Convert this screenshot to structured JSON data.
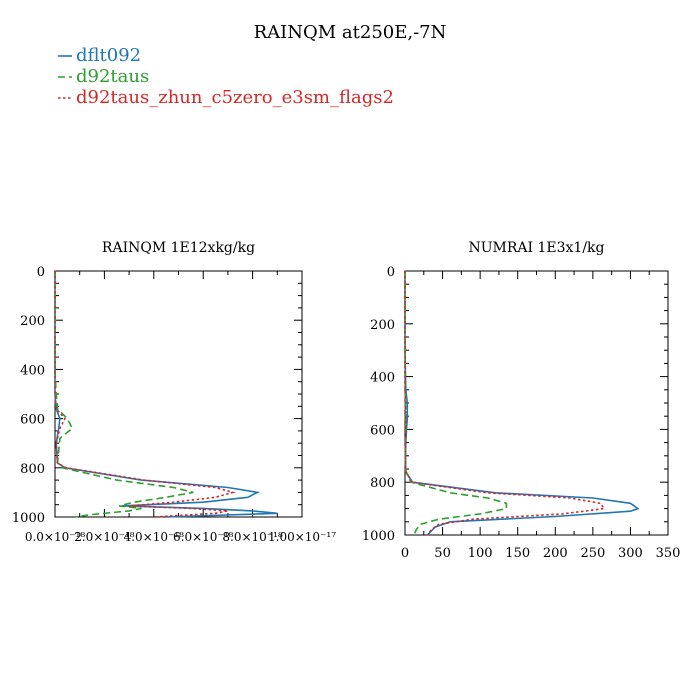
{
  "title": "RAINQM at250E,-7N",
  "legend": [
    {
      "label": "dflt092",
      "color": "#1f77b4",
      "dash": "solid"
    },
    {
      "label": "d92taus",
      "color": "#2ca02c",
      "dash": "dashed"
    },
    {
      "label": "d92taus_zhun_c5zero_e3sm_flags2",
      "color": "#d62728",
      "dash": "dotted"
    }
  ],
  "chart_data": [
    {
      "type": "line",
      "title": "RAINQM  1E12xkg/kg",
      "xlabel": "",
      "ylabel": "",
      "xlim": [
        0,
        1e-17
      ],
      "ylim": [
        1000,
        0
      ],
      "y_ticks": [
        0,
        200,
        400,
        600,
        800,
        1000
      ],
      "y_tick_labels": [
        "0",
        "200",
        "400",
        "600",
        "800",
        "1000"
      ],
      "x_ticks": [
        0,
        2e-18,
        4e-18,
        6e-18,
        8e-18,
        1e-17
      ],
      "x_tick_labels": [
        "0.0×10⁻¹⁸",
        "2.0×10⁻¹⁸",
        "4.0×10⁻¹⁸",
        "6.0×10⁻¹⁸",
        "8.0×10⁻¹⁸",
        "1.00×10⁻¹⁷"
      ],
      "series": [
        {
          "name": "dflt092",
          "color": "#1f77b4",
          "dash": "solid",
          "p": [
            0,
            200,
            400,
            500,
            560,
            600,
            640,
            700,
            780,
            800,
            850,
            880,
            900,
            920,
            940,
            955,
            965,
            975,
            985,
            1000
          ],
          "v": [
            0,
            0,
            0,
            0,
            5e-20,
            2e-19,
            1.5e-19,
            5e-20,
            1e-19,
            4e-19,
            3.5e-18,
            7e-18,
            8.2e-18,
            7.8e-18,
            6e-18,
            2.7e-18,
            6e-18,
            8e-18,
            9e-18,
            4.5e-18
          ]
        },
        {
          "name": "d92taus",
          "color": "#2ca02c",
          "dash": "dashed",
          "p": [
            0,
            200,
            400,
            450,
            500,
            560,
            600,
            640,
            680,
            780,
            800,
            850,
            880,
            900,
            920,
            940,
            955,
            965,
            975,
            990,
            1000
          ],
          "v": [
            0,
            0,
            0,
            2e-20,
            5e-20,
            1e-19,
            5e-19,
            7e-19,
            2e-19,
            1e-19,
            3e-19,
            2.5e-18,
            4.8e-18,
            5.6e-18,
            4.5e-18,
            3.2e-18,
            2.6e-18,
            3.5e-18,
            3e-18,
            1.5e-18,
            8e-19
          ]
        },
        {
          "name": "d92taus_zhun_c5zero_e3sm_flags2",
          "color": "#d62728",
          "dash": "dotted",
          "p": [
            0,
            200,
            400,
            500,
            560,
            600,
            640,
            700,
            780,
            800,
            850,
            880,
            900,
            920,
            940,
            955,
            965,
            975,
            985,
            1000
          ],
          "v": [
            0,
            0,
            0,
            0,
            5e-20,
            4e-19,
            2e-19,
            5e-20,
            1e-19,
            4.5e-19,
            3.6e-18,
            6.5e-18,
            7.2e-18,
            6.5e-18,
            4.8e-18,
            3e-18,
            5.5e-18,
            7e-18,
            6.5e-18,
            4e-18
          ]
        }
      ]
    },
    {
      "type": "line",
      "title": "NUMRAI  1E3x1/kg",
      "xlabel": "",
      "ylabel": "",
      "xlim": [
        0,
        350
      ],
      "ylim": [
        1000,
        0
      ],
      "y_ticks": [
        0,
        200,
        400,
        600,
        800,
        1000
      ],
      "y_tick_labels": [
        "0",
        "200",
        "400",
        "600",
        "800",
        "1000"
      ],
      "x_ticks": [
        0,
        50,
        100,
        150,
        200,
        250,
        300,
        350
      ],
      "x_tick_labels": [
        "0",
        "50",
        "100",
        "150",
        "200",
        "250",
        "300",
        "350"
      ],
      "series": [
        {
          "name": "dflt092",
          "color": "#1f77b4",
          "dash": "solid",
          "p": [
            0,
            200,
            300,
            450,
            500,
            560,
            600,
            650,
            700,
            760,
            800,
            840,
            860,
            880,
            900,
            910,
            930,
            950,
            970,
            1000
          ],
          "v": [
            0,
            0,
            0,
            1,
            3,
            3,
            2,
            1,
            0.5,
            1,
            10,
            120,
            250,
            300,
            310,
            300,
            200,
            60,
            40,
            30
          ]
        },
        {
          "name": "d92taus",
          "color": "#2ca02c",
          "dash": "dashed",
          "p": [
            0,
            200,
            400,
            500,
            600,
            700,
            760,
            800,
            840,
            860,
            880,
            900,
            920,
            940,
            960,
            980,
            1000
          ],
          "v": [
            0,
            0,
            0,
            0.5,
            1,
            0.5,
            1,
            8,
            60,
            110,
            135,
            135,
            100,
            45,
            20,
            15,
            12
          ]
        },
        {
          "name": "d92taus_zhun_c5zero_e3sm_flags2",
          "color": "#d62728",
          "dash": "dotted",
          "p": [
            0,
            200,
            400,
            500,
            600,
            700,
            760,
            800,
            840,
            860,
            880,
            900,
            920,
            940,
            960,
            980,
            1000
          ],
          "v": [
            0,
            0,
            0,
            0.5,
            1,
            0.5,
            1,
            9,
            110,
            220,
            260,
            265,
            210,
            90,
            45,
            35,
            30
          ]
        }
      ]
    }
  ]
}
